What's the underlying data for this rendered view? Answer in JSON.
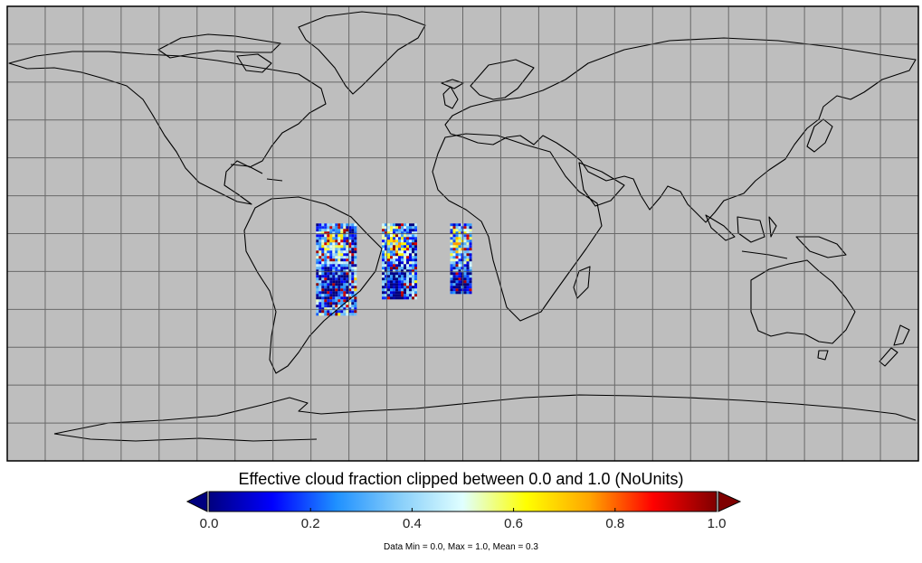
{
  "map": {
    "background_color": "#bebebe",
    "coastline_color": "#000000",
    "gridline_color": "#555555",
    "projection": "equirectangular",
    "extent": {
      "lon": [
        -180,
        180
      ],
      "lat": [
        -90,
        90
      ]
    },
    "gridlines": {
      "lon_step": 15,
      "lat_step": 15
    },
    "data_swaths": [
      {
        "lon": [
          -58,
          -42
        ],
        "lat": [
          -32,
          4
        ]
      },
      {
        "lon": [
          -32,
          -19
        ],
        "lat": [
          -25,
          4
        ]
      },
      {
        "lon": [
          -5,
          3
        ],
        "lat": [
          -23,
          4
        ]
      }
    ]
  },
  "colorbar": {
    "title": "Effective cloud fraction clipped between 0.0 and 1.0 (NoUnits)",
    "min": 0.0,
    "max": 1.0,
    "ticks": [
      "0.0",
      "0.2",
      "0.4",
      "0.6",
      "0.8",
      "1.0"
    ],
    "colormap": [
      "#00007f",
      "#0000ff",
      "#1e90ff",
      "#87cefa",
      "#e0ffff",
      "#ffff00",
      "#ffa500",
      "#ff0000",
      "#7f0000"
    ],
    "under_color": "#00007f",
    "over_color": "#7f0000"
  },
  "stats": "Data Min = 0.0, Max = 1.0, Mean = 0.3"
}
